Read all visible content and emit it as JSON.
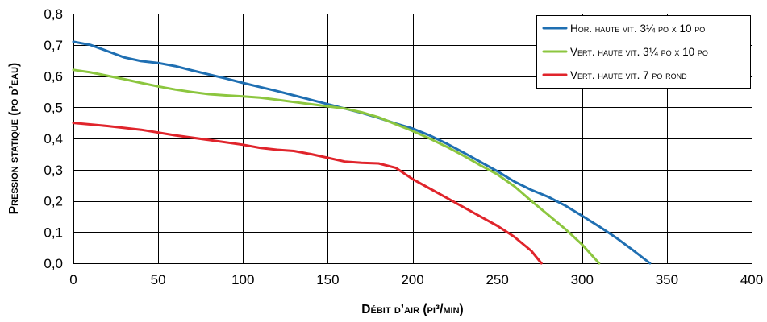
{
  "chart_data": {
    "type": "line",
    "xlabel": "Débit d’air (pi³/min)",
    "ylabel": "Pression statique (po d’eau)",
    "xlim": [
      0,
      400
    ],
    "ylim": [
      0,
      0.8
    ],
    "x_ticks": [
      0,
      50,
      100,
      150,
      200,
      250,
      300,
      350,
      400
    ],
    "x_tick_labels": [
      "0",
      "50",
      "100",
      "150",
      "200",
      "250",
      "300",
      "350",
      "400"
    ],
    "y_ticks": [
      0,
      0.1,
      0.2,
      0.3,
      0.4,
      0.5,
      0.6,
      0.7,
      0.8
    ],
    "y_tick_labels": [
      "0,0",
      "0,1",
      "0,2",
      "0,3",
      "0,4",
      "0,5",
      "0,6",
      "0,7",
      "0,8"
    ],
    "grid": true,
    "legend_position": "top-right",
    "series": [
      {
        "name": "Hor. haute vit. 3¼ po x 10 po",
        "color": "#1f6fb2",
        "points": [
          [
            0,
            0.71
          ],
          [
            10,
            0.7
          ],
          [
            20,
            0.68
          ],
          [
            30,
            0.66
          ],
          [
            40,
            0.648
          ],
          [
            50,
            0.642
          ],
          [
            60,
            0.632
          ],
          [
            70,
            0.618
          ],
          [
            80,
            0.605
          ],
          [
            90,
            0.592
          ],
          [
            100,
            0.578
          ],
          [
            110,
            0.565
          ],
          [
            120,
            0.552
          ],
          [
            130,
            0.538
          ],
          [
            140,
            0.524
          ],
          [
            150,
            0.51
          ],
          [
            160,
            0.496
          ],
          [
            170,
            0.482
          ],
          [
            180,
            0.466
          ],
          [
            190,
            0.448
          ],
          [
            200,
            0.432
          ],
          [
            210,
            0.41
          ],
          [
            220,
            0.384
          ],
          [
            230,
            0.355
          ],
          [
            240,
            0.325
          ],
          [
            250,
            0.295
          ],
          [
            260,
            0.262
          ],
          [
            270,
            0.235
          ],
          [
            280,
            0.213
          ],
          [
            290,
            0.185
          ],
          [
            300,
            0.152
          ],
          [
            310,
            0.118
          ],
          [
            320,
            0.082
          ],
          [
            330,
            0.042
          ],
          [
            340,
            0.0
          ]
        ]
      },
      {
        "name": "Vert. haute vit. 3¼ po x 10 po",
        "color": "#8cc63f",
        "points": [
          [
            0,
            0.62
          ],
          [
            10,
            0.612
          ],
          [
            20,
            0.601
          ],
          [
            30,
            0.59
          ],
          [
            40,
            0.578
          ],
          [
            50,
            0.567
          ],
          [
            60,
            0.557
          ],
          [
            70,
            0.549
          ],
          [
            80,
            0.542
          ],
          [
            90,
            0.538
          ],
          [
            100,
            0.535
          ],
          [
            110,
            0.531
          ],
          [
            120,
            0.524
          ],
          [
            130,
            0.517
          ],
          [
            140,
            0.51
          ],
          [
            150,
            0.503
          ],
          [
            160,
            0.496
          ],
          [
            170,
            0.484
          ],
          [
            180,
            0.468
          ],
          [
            190,
            0.446
          ],
          [
            200,
            0.424
          ],
          [
            210,
            0.4
          ],
          [
            220,
            0.374
          ],
          [
            230,
            0.345
          ],
          [
            240,
            0.314
          ],
          [
            250,
            0.285
          ],
          [
            260,
            0.247
          ],
          [
            270,
            0.2
          ],
          [
            280,
            0.155
          ],
          [
            290,
            0.11
          ],
          [
            300,
            0.06
          ],
          [
            310,
            0.0
          ]
        ]
      },
      {
        "name": "Vert. haute vit. 7 po rond",
        "color": "#e0242b",
        "points": [
          [
            0,
            0.45
          ],
          [
            20,
            0.44
          ],
          [
            40,
            0.428
          ],
          [
            60,
            0.41
          ],
          [
            80,
            0.395
          ],
          [
            100,
            0.38
          ],
          [
            110,
            0.37
          ],
          [
            120,
            0.364
          ],
          [
            130,
            0.36
          ],
          [
            140,
            0.35
          ],
          [
            150,
            0.338
          ],
          [
            160,
            0.326
          ],
          [
            170,
            0.322
          ],
          [
            180,
            0.32
          ],
          [
            190,
            0.306
          ],
          [
            200,
            0.27
          ],
          [
            210,
            0.24
          ],
          [
            220,
            0.21
          ],
          [
            230,
            0.18
          ],
          [
            240,
            0.15
          ],
          [
            250,
            0.12
          ],
          [
            260,
            0.085
          ],
          [
            270,
            0.04
          ],
          [
            276,
            0.0
          ]
        ]
      }
    ]
  }
}
